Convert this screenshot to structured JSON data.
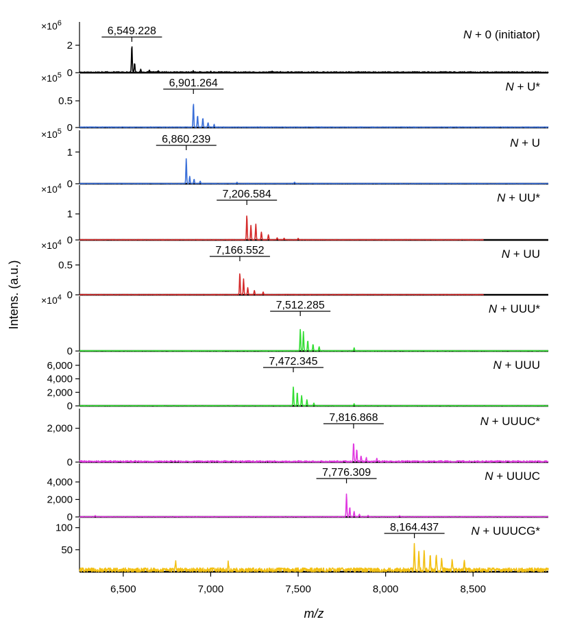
{
  "chart_data": {
    "type": "line",
    "xlabel": "m/z",
    "ylabel": "Intens. (a.u.)",
    "xlim": [
      6250,
      8930
    ],
    "x_ticks": [
      "6,500",
      "7,000",
      "7,500",
      "8,000",
      "8,500"
    ],
    "x_tick_values": [
      6500,
      7000,
      7500,
      8000,
      8500
    ],
    "panels": [
      {
        "label": "N + 0 (initiator)",
        "label_main": "N",
        "label_rest": " + 0 (initiator)",
        "color": "#000000",
        "multiplier": "×10",
        "multiplier_exp": "6",
        "ylim": [
          0,
          3.5
        ],
        "yticks": [
          0,
          2
        ],
        "ytick_labels": [
          "0",
          "2"
        ],
        "peak": {
          "mz": 6549.228,
          "label": "6,549.228",
          "height": 2.0
        },
        "x_end": 8930,
        "noise": 0.06,
        "baseline": 0.05,
        "sub_peaks": [
          [
            6565,
            0.7
          ],
          [
            6600,
            0.2
          ],
          [
            6650,
            0.15
          ],
          [
            6700,
            0.12
          ],
          [
            6900,
            0.1
          ],
          [
            7000,
            0.08
          ],
          [
            7350,
            0.06
          ]
        ]
      },
      {
        "label": "N + U*",
        "label_main": "N",
        "label_rest": " + U*",
        "color": "#3a6fd8",
        "multiplier": "×10",
        "multiplier_exp": "5",
        "ylim": [
          0,
          0.95
        ],
        "yticks": [
          0,
          0.5
        ],
        "ytick_labels": [
          "0",
          "0.5"
        ],
        "peak": {
          "mz": 6901.264,
          "label": "6,901.264",
          "height": 0.45
        },
        "x_end": 8930,
        "noise": 0.006,
        "baseline": 0.02,
        "sub_peaks": [
          [
            6925,
            0.22
          ],
          [
            6955,
            0.17
          ],
          [
            6985,
            0.09
          ],
          [
            7020,
            0.05
          ]
        ]
      },
      {
        "label": "N + U",
        "label_main": "N",
        "label_rest": " + U",
        "color": "#3a6fd8",
        "multiplier": "×10",
        "multiplier_exp": "5",
        "ylim": [
          0,
          1.6
        ],
        "yticks": [
          0,
          1
        ],
        "ytick_labels": [
          "0",
          "1"
        ],
        "peak": {
          "mz": 6860.239,
          "label": "6,860.239",
          "height": 0.78
        },
        "x_end": 8930,
        "noise": 0.008,
        "baseline": 0.02,
        "sub_peaks": [
          [
            6880,
            0.22
          ],
          [
            6905,
            0.14
          ],
          [
            6940,
            0.08
          ],
          [
            7150,
            0.04
          ],
          [
            7480,
            0.04
          ]
        ]
      },
      {
        "label": "N + UU*",
        "label_main": "N",
        "label_rest": " + UU*",
        "color": "#d42a2a",
        "multiplier": "×10",
        "multiplier_exp": "4",
        "ylim": [
          0,
          2.0
        ],
        "yticks": [
          0,
          1
        ],
        "ytick_labels": [
          "0",
          "1"
        ],
        "peak": {
          "mz": 7206.584,
          "label": "7,206.584",
          "height": 0.95
        },
        "x_end": 8560,
        "noise": 0.01,
        "baseline": 0.02,
        "sub_peaks": [
          [
            7230,
            0.55
          ],
          [
            7258,
            0.6
          ],
          [
            7290,
            0.3
          ],
          [
            7330,
            0.2
          ],
          [
            7380,
            0.08
          ],
          [
            7420,
            0.06
          ],
          [
            7500,
            0.05
          ]
        ]
      },
      {
        "label": "N + UU",
        "label_main": "N",
        "label_rest": " + UU",
        "color": "#d42a2a",
        "multiplier": "×10",
        "multiplier_exp": "4",
        "ylim": [
          0,
          0.85
        ],
        "yticks": [
          0,
          0.5
        ],
        "ytick_labels": [
          "0",
          "0.5"
        ],
        "peak": {
          "mz": 7166.552,
          "label": "7,166.552",
          "height": 0.36
        },
        "x_end": 8560,
        "noise": 0.004,
        "baseline": 0.01,
        "sub_peaks": [
          [
            7188,
            0.26
          ],
          [
            7212,
            0.12
          ],
          [
            7250,
            0.07
          ],
          [
            7300,
            0.04
          ]
        ]
      },
      {
        "label": "N + UUU*",
        "label_main": "N",
        "label_rest": " + UUU*",
        "color": "#33dd33",
        "multiplier": "×10",
        "multiplier_exp": "4",
        "ylim": [
          0,
          1.1
        ],
        "yticks": [
          0
        ],
        "ytick_labels": [
          "0"
        ],
        "peak": {
          "mz": 7512.285,
          "label": "7,512.285",
          "height": 0.45
        },
        "x_end": 8930,
        "noise": 0.006,
        "baseline": 0.015,
        "sub_peaks": [
          [
            7530,
            0.4
          ],
          [
            7555,
            0.22
          ],
          [
            7585,
            0.14
          ],
          [
            7620,
            0.08
          ],
          [
            7820,
            0.06
          ]
        ]
      },
      {
        "label": "N + UUU",
        "label_main": "N",
        "label_rest": " + UUU",
        "color": "#33dd33",
        "multiplier": "",
        "multiplier_exp": "",
        "ylim": [
          0,
          7500
        ],
        "yticks": [
          0,
          2000,
          4000,
          6000
        ],
        "ytick_labels": [
          "0",
          "2,000",
          "4,000",
          "6,000"
        ],
        "peak": {
          "mz": 7472.345,
          "label": "7,472.345",
          "height": 2800
        },
        "x_end": 8930,
        "noise": 40,
        "baseline": 60,
        "sub_peaks": [
          [
            7495,
            2000
          ],
          [
            7520,
            1500
          ],
          [
            7550,
            900
          ],
          [
            7590,
            400
          ],
          [
            7820,
            300
          ]
        ]
      },
      {
        "label": "N + UUUC*",
        "label_main": "N",
        "label_rest": " + UUUC*",
        "color": "#e03ae0",
        "multiplier": "",
        "multiplier_exp": "",
        "ylim": [
          0,
          3000
        ],
        "yticks": [
          0,
          2000
        ],
        "ytick_labels": [
          "0",
          "2,000"
        ],
        "peak": {
          "mz": 7816.868,
          "label": "7,816.868",
          "height": 1150
        },
        "x_end": 8930,
        "noise": 60,
        "baseline": 80,
        "sub_peaks": [
          [
            7835,
            700
          ],
          [
            7860,
            350
          ],
          [
            7890,
            220
          ],
          [
            7950,
            150
          ]
        ]
      },
      {
        "label": "N + UUUC",
        "label_main": "N",
        "label_rest": " + UUUC",
        "color": "#e03ae0",
        "multiplier": "",
        "multiplier_exp": "",
        "ylim": [
          0,
          5800
        ],
        "yticks": [
          0,
          2000,
          4000
        ],
        "ytick_labels": [
          "0",
          "2,000",
          "4,000"
        ],
        "peak": {
          "mz": 7776.309,
          "label": "7,776.309",
          "height": 2600
        },
        "x_end": 8930,
        "noise": 40,
        "baseline": 40,
        "sub_peaks": [
          [
            7795,
            1100
          ],
          [
            7820,
            600
          ],
          [
            7850,
            300
          ],
          [
            7900,
            180
          ],
          [
            8080,
            150
          ],
          [
            6340,
            150
          ]
        ]
      },
      {
        "label": "N + UUUCG*",
        "label_main": "N",
        "label_rest": " + UUUCG*",
        "color": "#f2c014",
        "multiplier": "",
        "multiplier_exp": "",
        "ylim": [
          0,
          115
        ],
        "yticks": [
          50,
          100
        ],
        "ytick_labels": [
          "50",
          "100"
        ],
        "peak": {
          "mz": 8164.437,
          "label": "8,164.437",
          "height": 58
        },
        "x_end": 8930,
        "noise": 5,
        "baseline": 13,
        "sub_peaks": [
          [
            8190,
            42
          ],
          [
            8220,
            46
          ],
          [
            8255,
            40
          ],
          [
            8290,
            36
          ],
          [
            8320,
            30
          ],
          [
            8380,
            24
          ],
          [
            8450,
            20
          ],
          [
            6800,
            20
          ],
          [
            7100,
            18
          ]
        ]
      }
    ]
  }
}
